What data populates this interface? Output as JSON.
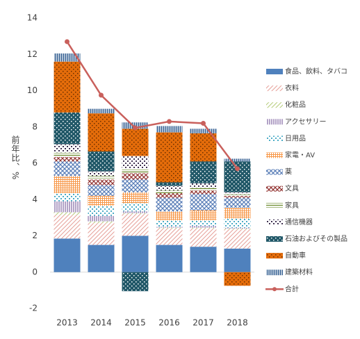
{
  "chart_data": {
    "type": "bar",
    "stacked": true,
    "grid": false,
    "ylabel": "前年比、%",
    "categories": [
      "2013",
      "2014",
      "2015",
      "2016",
      "2017",
      "2018"
    ],
    "ylim": [
      -2,
      14
    ],
    "yticks": [
      -2,
      0,
      2,
      4,
      6,
      8,
      10,
      12,
      14
    ],
    "series": [
      {
        "name": "食品、飲料、タバコ",
        "color": "#4f81bd",
        "values": [
          1.85,
          1.5,
          2.0,
          1.5,
          1.4,
          1.3
        ]
      },
      {
        "name": "衣料",
        "color": "#e6a19a",
        "values": [
          1.3,
          1.2,
          1.2,
          0.9,
          1.0,
          1.05
        ]
      },
      {
        "name": "化粧品",
        "color": "#b5cc7a",
        "values": [
          0.15,
          0.1,
          0.05,
          0.05,
          0.05,
          0.05
        ]
      },
      {
        "name": "アクセサリー",
        "color": "#8064a2",
        "values": [
          0.6,
          0.3,
          0.1,
          0.05,
          0.1,
          0.05
        ]
      },
      {
        "name": "日用品",
        "color": "#4bacc6",
        "values": [
          0.45,
          0.55,
          0.45,
          0.35,
          0.3,
          0.5
        ]
      },
      {
        "name": "家電・AV",
        "color": "#f79646",
        "values": [
          0.95,
          0.55,
          0.6,
          0.5,
          0.55,
          0.6
        ]
      },
      {
        "name": "薬",
        "color": "#5b7fb8",
        "values": [
          0.8,
          0.6,
          0.7,
          0.75,
          0.9,
          0.55
        ]
      },
      {
        "name": "文具",
        "color": "#943634",
        "values": [
          0.25,
          0.3,
          0.35,
          0.25,
          0.2,
          0.1
        ]
      },
      {
        "name": "家具",
        "color": "#6b8a2c",
        "values": [
          0.25,
          0.2,
          0.25,
          0.15,
          0.15,
          0.1
        ]
      },
      {
        "name": "通信機器",
        "color": "#3f3151",
        "values": [
          0.45,
          0.25,
          0.7,
          0.25,
          0.25,
          0.1
        ]
      },
      {
        "name": "石油およびその製品",
        "color": "#215868",
        "values": [
          1.75,
          1.1,
          -1.05,
          0.2,
          1.2,
          1.7
        ]
      },
      {
        "name": "自動車",
        "color": "#e46c0a",
        "values": [
          2.8,
          2.1,
          1.5,
          2.75,
          1.55,
          -0.75
        ]
      },
      {
        "name": "建築材料",
        "color": "#366092",
        "values": [
          0.45,
          0.25,
          0.35,
          0.35,
          0.25,
          0.15
        ]
      },
      {
        "name": "合計",
        "color": "#c9605c",
        "type": "line",
        "values": [
          12.7,
          9.75,
          7.95,
          8.3,
          8.2,
          5.7
        ]
      }
    ]
  }
}
